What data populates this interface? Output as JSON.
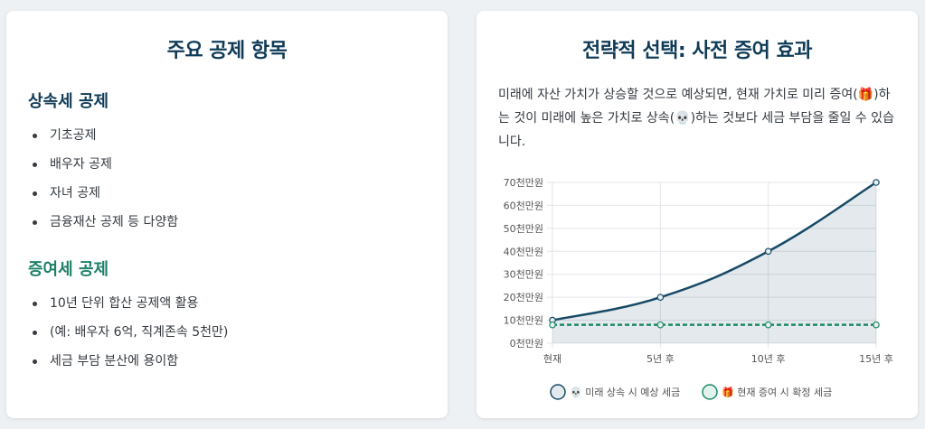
{
  "left_card": {
    "title": "주요 공제 항목",
    "inheritance": {
      "title": "상속세 공제",
      "items": [
        "기초공제",
        "배우자 공제",
        "자녀 공제",
        "금융재산 공제 등 다양함"
      ]
    },
    "gift": {
      "title": "증여세 공제",
      "items": [
        "10년 단위 합산 공제액 활용",
        "(예: 배우자 6억, 직계존속 5천만)",
        "세금 부담 분산에 용이함"
      ]
    }
  },
  "right_card": {
    "title": "전략적 선택: 사전 증여 효과",
    "description": "미래에 자산 가치가 상승할 것으로 예상되면, 현재 가치로 미리 증여(🎁)하는 것이 미래에 높은 가치로 상속(💀)하는 것보다 세금 부담을 줄일 수 있습니다."
  },
  "colors": {
    "navy": "#0f3b57",
    "teal": "#1d8068",
    "series_inherit": "#174a66",
    "series_gift": "#1d8a66"
  },
  "chart_data": {
    "type": "line",
    "categories": [
      "현재",
      "5년 후",
      "10년 후",
      "15년 후"
    ],
    "y_tick_labels": [
      "0천만원",
      "10천만원",
      "20천만원",
      "30천만원",
      "40천만원",
      "50천만원",
      "60천만원",
      "70천만원"
    ],
    "ylim": [
      0,
      70
    ],
    "unit": "천만원",
    "grid": true,
    "legend_position": "bottom",
    "series": [
      {
        "name": "💀 미래 상속 시 예상 세금",
        "values": [
          10,
          20,
          40,
          70
        ],
        "fill": true,
        "dashed": false
      },
      {
        "name": "🎁 현재 증여 시 확정 세금",
        "values": [
          8,
          8,
          8,
          8
        ],
        "fill": false,
        "dashed": true
      }
    ]
  }
}
